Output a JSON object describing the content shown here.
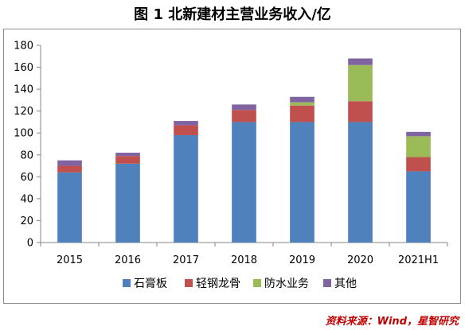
{
  "title": "图 1  北新建材主营业务收入/亿",
  "source": "资料来源：Wind，星智研究",
  "chart_data": {
    "type": "bar",
    "stacked": true,
    "categories": [
      "2015",
      "2016",
      "2017",
      "2018",
      "2019",
      "2020",
      "2021H1"
    ],
    "series": [
      {
        "name": "石膏板",
        "color": "#4f81bd",
        "values": [
          64,
          72,
          98,
          110,
          110,
          110,
          65
        ]
      },
      {
        "name": "轻钢龙骨",
        "color": "#c0504d",
        "values": [
          6,
          7,
          9,
          11,
          15,
          19,
          13
        ]
      },
      {
        "name": "防水业务",
        "color": "#9bbb59",
        "values": [
          0,
          0,
          0,
          0,
          3,
          33,
          19
        ]
      },
      {
        "name": "其他",
        "color": "#8064a2",
        "values": [
          5,
          3,
          4,
          5,
          5,
          6,
          4
        ]
      }
    ],
    "ylim": [
      0,
      180
    ],
    "yticks": [
      0,
      20,
      40,
      60,
      80,
      100,
      120,
      140,
      160,
      180
    ],
    "grid": false,
    "legend_position": "bottom"
  }
}
